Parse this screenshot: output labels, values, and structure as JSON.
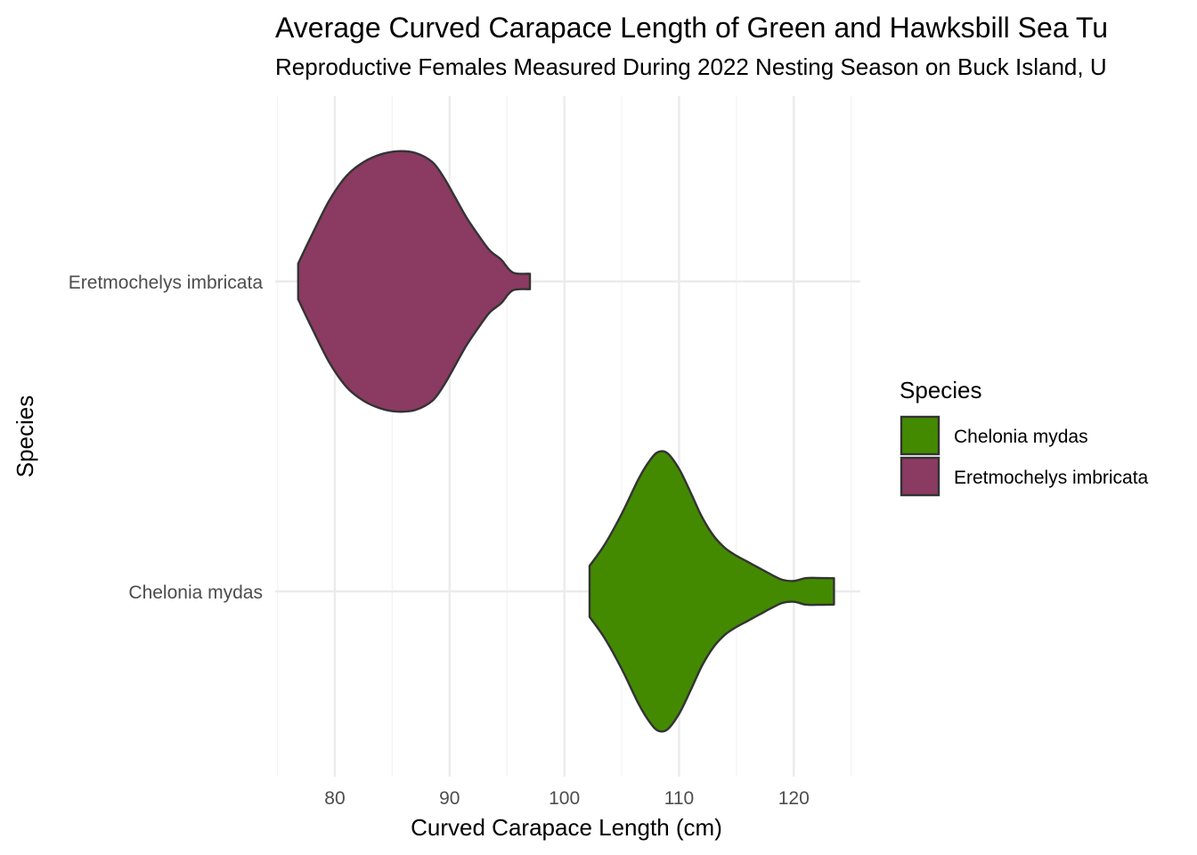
{
  "chart_data": {
    "type": "violin",
    "title": "Average Curved Carapace Length of Green and Hawksbill Sea Tu",
    "subtitle": "Reproductive Females Measured During 2022 Nesting Season on Buck Island, U",
    "xlabel": "Curved Carapace Length (cm)",
    "ylabel": "Species",
    "xlim": [
      74.8,
      125.8
    ],
    "x_ticks": [
      80,
      90,
      100,
      110,
      120
    ],
    "x_minor_ticks": [
      75,
      85,
      95,
      105,
      115,
      125
    ],
    "categories": [
      "Chelonia mydas",
      "Eretmochelys imbricata"
    ],
    "grid": true,
    "legend": {
      "title": "Species",
      "position": "right",
      "entries": [
        "Chelonia mydas",
        "Eretmochelys imbricata"
      ]
    },
    "series": [
      {
        "category": "Chelonia mydas",
        "color": "#438A00",
        "min": 102.2,
        "max": 123.5,
        "density": [
          [
            102.2,
            0.165
          ],
          [
            103.5,
            0.3
          ],
          [
            105.0,
            0.5
          ],
          [
            106.5,
            0.73
          ],
          [
            107.5,
            0.85
          ],
          [
            108.2,
            0.9
          ],
          [
            109.0,
            0.89
          ],
          [
            110.0,
            0.79
          ],
          [
            111.0,
            0.64
          ],
          [
            112.0,
            0.48
          ],
          [
            113.0,
            0.36
          ],
          [
            114.0,
            0.28
          ],
          [
            115.0,
            0.23
          ],
          [
            116.0,
            0.19
          ],
          [
            117.0,
            0.15
          ],
          [
            118.0,
            0.11
          ],
          [
            119.0,
            0.075
          ],
          [
            120.0,
            0.067
          ],
          [
            121.0,
            0.085
          ],
          [
            122.0,
            0.087
          ],
          [
            123.5,
            0.085
          ]
        ]
      },
      {
        "category": "Eretmochelys imbricata",
        "color": "#8B3A62",
        "min": 76.8,
        "max": 97.0,
        "density": [
          [
            76.8,
            0.115
          ],
          [
            78.0,
            0.3
          ],
          [
            79.5,
            0.52
          ],
          [
            81.0,
            0.68
          ],
          [
            82.5,
            0.77
          ],
          [
            84.0,
            0.82
          ],
          [
            85.5,
            0.84
          ],
          [
            87.0,
            0.83
          ],
          [
            88.5,
            0.77
          ],
          [
            89.5,
            0.67
          ],
          [
            90.5,
            0.54
          ],
          [
            91.5,
            0.41
          ],
          [
            92.5,
            0.3
          ],
          [
            93.5,
            0.2
          ],
          [
            94.5,
            0.14
          ],
          [
            95.5,
            0.058
          ],
          [
            97.0,
            0.05
          ]
        ]
      }
    ]
  }
}
